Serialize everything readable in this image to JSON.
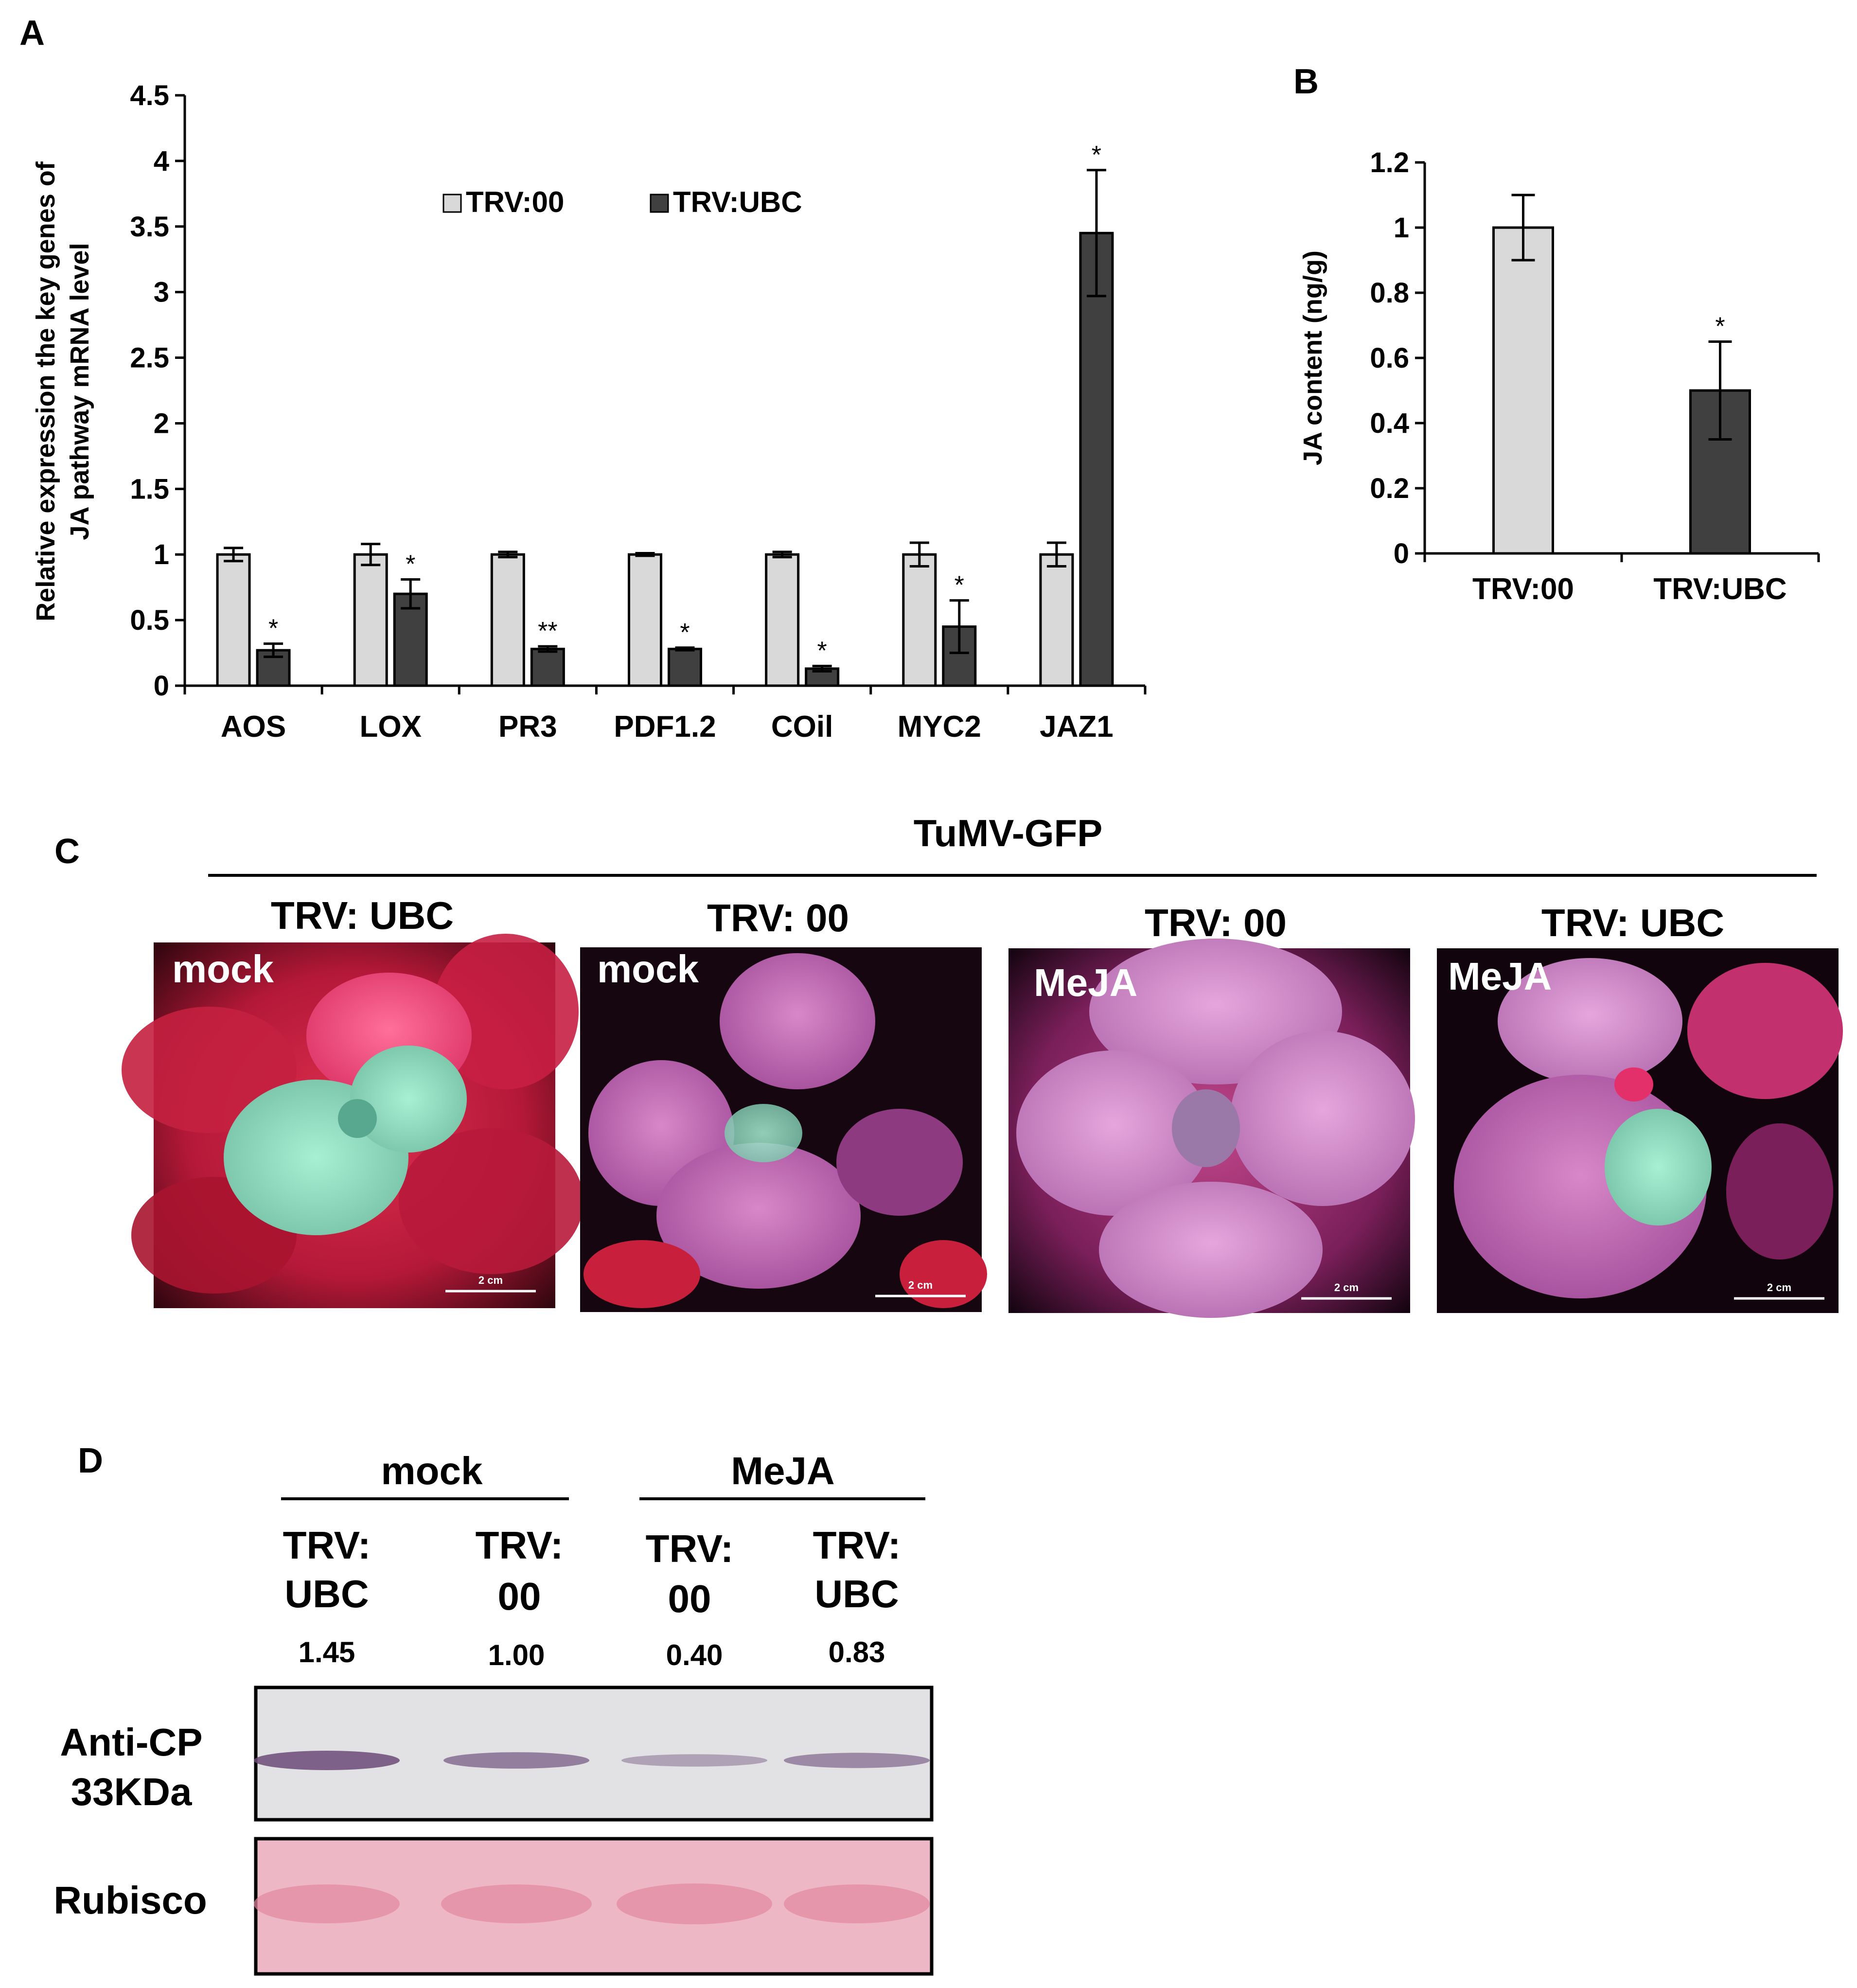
{
  "panels": {
    "A": "A",
    "B": "B",
    "C": "C",
    "D": "D"
  },
  "chart_data": [
    {
      "type": "bar",
      "panel": "A",
      "categories": [
        "AOS",
        "LOX",
        "PR3",
        "PDF1.2",
        "COil",
        "MYC2",
        "JAZ1"
      ],
      "series": [
        {
          "name": "TRV:00",
          "color": "#d9d9d9",
          "values": [
            1.0,
            1.0,
            1.0,
            1.0,
            1.0,
            1.0,
            1.0
          ],
          "errors": [
            0.05,
            0.08,
            0.02,
            0.01,
            0.02,
            0.09,
            0.09
          ],
          "significance": [
            "",
            "",
            "",
            "",
            "",
            "",
            ""
          ]
        },
        {
          "name": "TRV:UBC",
          "color": "#404040",
          "values": [
            0.27,
            0.7,
            0.28,
            0.28,
            0.13,
            0.45,
            3.45
          ],
          "errors": [
            0.05,
            0.11,
            0.02,
            0.01,
            0.02,
            0.2,
            0.48
          ],
          "significance": [
            "*",
            "*",
            "**",
            "*",
            "*",
            "*",
            "*"
          ]
        }
      ],
      "ylabel_line1": "Relative expression the key genes of",
      "ylabel_line2": "JA pathway  mRNA level",
      "ylim": [
        0,
        4.5
      ],
      "yticks": [
        "0",
        "0.5",
        "1",
        "1.5",
        "2",
        "2.5",
        "3",
        "3.5",
        "4",
        "4.5"
      ],
      "legend_placement": "top-center",
      "grid": false
    },
    {
      "type": "bar",
      "panel": "B",
      "categories": [
        "TRV:00",
        "TRV:UBC"
      ],
      "values": [
        1.0,
        0.5
      ],
      "errors": [
        0.1,
        0.15
      ],
      "significance": [
        "",
        "*"
      ],
      "colors": [
        "#d9d9d9",
        "#404040"
      ],
      "ylabel": "JA content (ng/g)",
      "ylim": [
        0,
        1.2
      ],
      "yticks": [
        "0",
        "0.2",
        "0.4",
        "0.6",
        "0.8",
        "1",
        "1.2"
      ],
      "grid": false
    }
  ],
  "panel_c": {
    "header": "TuMV-GFP",
    "photos": [
      {
        "title": "TRV: UBC",
        "treatment": "mock",
        "scale": "2 cm"
      },
      {
        "title": "TRV: 00",
        "treatment": "mock",
        "scale": "2 cm"
      },
      {
        "title": "TRV: 00",
        "treatment": "MeJA",
        "scale": "2 cm"
      },
      {
        "title": "TRV: UBC",
        "treatment": "MeJA",
        "scale": "2 cm"
      }
    ]
  },
  "panel_d": {
    "groups": [
      "mock",
      "MeJA"
    ],
    "lanes": [
      {
        "line1": "TRV:",
        "line2": "UBC",
        "ratio": "1.45",
        "band": 1.45
      },
      {
        "line1": "TRV:",
        "line2": "00",
        "ratio": "1.00",
        "band": 1.0
      },
      {
        "line1": "TRV:",
        "line2": "00",
        "ratio": "0.40",
        "band": 0.4
      },
      {
        "line1": "TRV:",
        "line2": "UBC",
        "ratio": "0.83",
        "band": 0.83
      }
    ],
    "blot_label_1": "Anti-CP",
    "blot_label_2": "33KDa",
    "loading_label": "Rubisco"
  }
}
